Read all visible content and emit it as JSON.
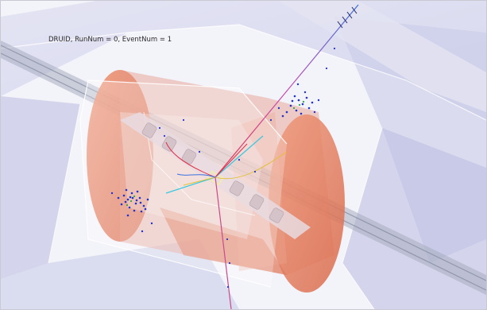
{
  "viewer": {
    "caption": "DRUID, RunNum = 0, EventNum = 1"
  },
  "colors": {
    "background": "#ffffff",
    "muon_chamber": "#c9cbe8",
    "calorimeter": "#e8866a",
    "inner_tracker": "#e4d8dc",
    "beam_pipe": "#9aa0b2",
    "track_red": "#e3304a",
    "track_cyan": "#38c8e0",
    "hit_blue": "#2233cc",
    "hit_green": "#29a83c"
  }
}
